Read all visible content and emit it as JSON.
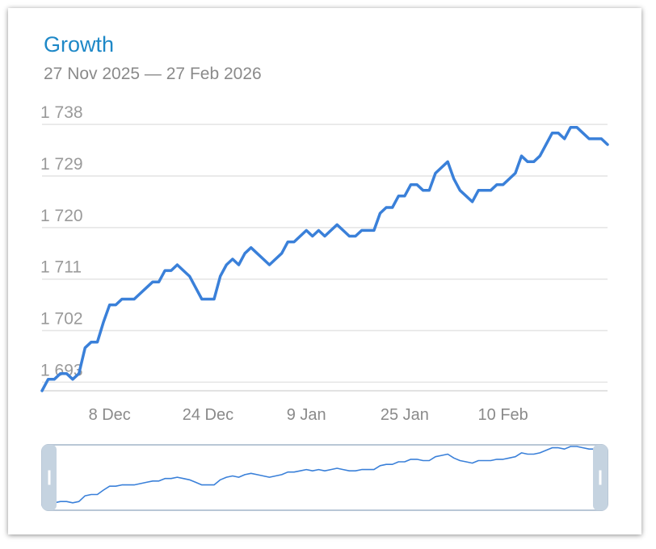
{
  "header": {
    "title": "Growth",
    "subtitle": "27 Nov 2025 — 27 Feb 2026"
  },
  "colors": {
    "title": "#1e88c7",
    "line": "#3a80d9",
    "grid": "#e4e4e4",
    "navigator_line": "#3a80d9",
    "navigator_border": "#b9c7d6",
    "navigator_handle": "#c5d3e0"
  },
  "chart_data": {
    "type": "line",
    "title": "Growth",
    "subtitle": "27 Nov 2025 — 27 Feb 2026",
    "xlabel": "",
    "ylabel": "",
    "x_range": [
      "2025-11-27",
      "2026-02-27"
    ],
    "ylim": [
      1691.5,
      1740
    ],
    "y_ticks": [
      1693,
      1702,
      1711,
      1720,
      1729,
      1738
    ],
    "y_tick_labels": [
      "1 693",
      "1 702",
      "1 711",
      "1 720",
      "1 729",
      "1 738"
    ],
    "x_ticks": [
      "2025-12-08",
      "2025-12-24",
      "2026-01-09",
      "2026-01-25",
      "2026-02-10"
    ],
    "x_tick_labels": [
      "8 Dec",
      "24 Dec",
      "9 Jan",
      "25 Jan",
      "10 Feb"
    ],
    "grid": true,
    "legend": "none",
    "navigator": true,
    "series": [
      {
        "x": [
          "2025-11-27",
          "2025-11-28",
          "2025-11-29",
          "2025-11-30",
          "2025-12-01",
          "2025-12-02",
          "2025-12-03",
          "2025-12-04",
          "2025-12-05",
          "2025-12-06",
          "2025-12-07",
          "2025-12-08",
          "2025-12-09",
          "2025-12-10",
          "2025-12-11",
          "2025-12-12",
          "2025-12-13",
          "2025-12-14",
          "2025-12-15",
          "2025-12-16",
          "2025-12-17",
          "2025-12-18",
          "2025-12-19",
          "2025-12-20",
          "2025-12-21",
          "2025-12-22",
          "2025-12-23",
          "2025-12-24",
          "2025-12-25",
          "2025-12-26",
          "2025-12-27",
          "2025-12-28",
          "2025-12-29",
          "2025-12-30",
          "2025-12-31",
          "2026-01-01",
          "2026-01-02",
          "2026-01-03",
          "2026-01-04",
          "2026-01-05",
          "2026-01-06",
          "2026-01-07",
          "2026-01-08",
          "2026-01-09",
          "2026-01-10",
          "2026-01-11",
          "2026-01-12",
          "2026-01-13",
          "2026-01-14",
          "2026-01-15",
          "2026-01-16",
          "2026-01-17",
          "2026-01-18",
          "2026-01-19",
          "2026-01-20",
          "2026-01-21",
          "2026-01-22",
          "2026-01-23",
          "2026-01-24",
          "2026-01-25",
          "2026-01-26",
          "2026-01-27",
          "2026-01-28",
          "2026-01-29",
          "2026-01-30",
          "2026-01-31",
          "2026-02-01",
          "2026-02-02",
          "2026-02-03",
          "2026-02-04",
          "2026-02-05",
          "2026-02-06",
          "2026-02-07",
          "2026-02-08",
          "2026-02-09",
          "2026-02-10",
          "2026-02-11",
          "2026-02-12",
          "2026-02-13",
          "2026-02-14",
          "2026-02-15",
          "2026-02-16",
          "2026-02-17",
          "2026-02-18",
          "2026-02-19",
          "2026-02-20",
          "2026-02-21",
          "2026-02-22",
          "2026-02-23",
          "2026-02-24",
          "2026-02-25",
          "2026-02-26",
          "2026-02-27"
        ],
        "values": [
          1691.5,
          1693.5,
          1693.5,
          1694.5,
          1694.5,
          1693.5,
          1694.5,
          1699,
          1700,
          1700,
          1703.5,
          1706.5,
          1706.5,
          1707.5,
          1707.5,
          1707.5,
          1708.5,
          1709.5,
          1710.5,
          1710.5,
          1712.5,
          1712.5,
          1713.5,
          1712.5,
          1711.5,
          1709.5,
          1707.5,
          1707.5,
          1707.5,
          1711.5,
          1713.5,
          1714.5,
          1713.5,
          1715.5,
          1716.5,
          1715.5,
          1714.5,
          1713.5,
          1714.5,
          1715.5,
          1717.5,
          1717.5,
          1718.5,
          1719.5,
          1718.5,
          1719.5,
          1718.5,
          1719.5,
          1720.5,
          1719.5,
          1718.5,
          1718.5,
          1719.5,
          1719.5,
          1719.5,
          1722.5,
          1723.5,
          1723.5,
          1725.5,
          1725.5,
          1727.5,
          1727.5,
          1726.5,
          1726.5,
          1729.5,
          1730.5,
          1731.5,
          1728.5,
          1726.5,
          1725.5,
          1724.5,
          1726.5,
          1726.5,
          1726.5,
          1727.5,
          1727.5,
          1728.5,
          1729.5,
          1732.5,
          1731.5,
          1731.5,
          1732.5,
          1734.5,
          1736.5,
          1736.5,
          1735.5,
          1737.5,
          1737.5,
          1736.5,
          1735.5,
          1735.5,
          1735.5,
          1734.5
        ]
      }
    ]
  }
}
